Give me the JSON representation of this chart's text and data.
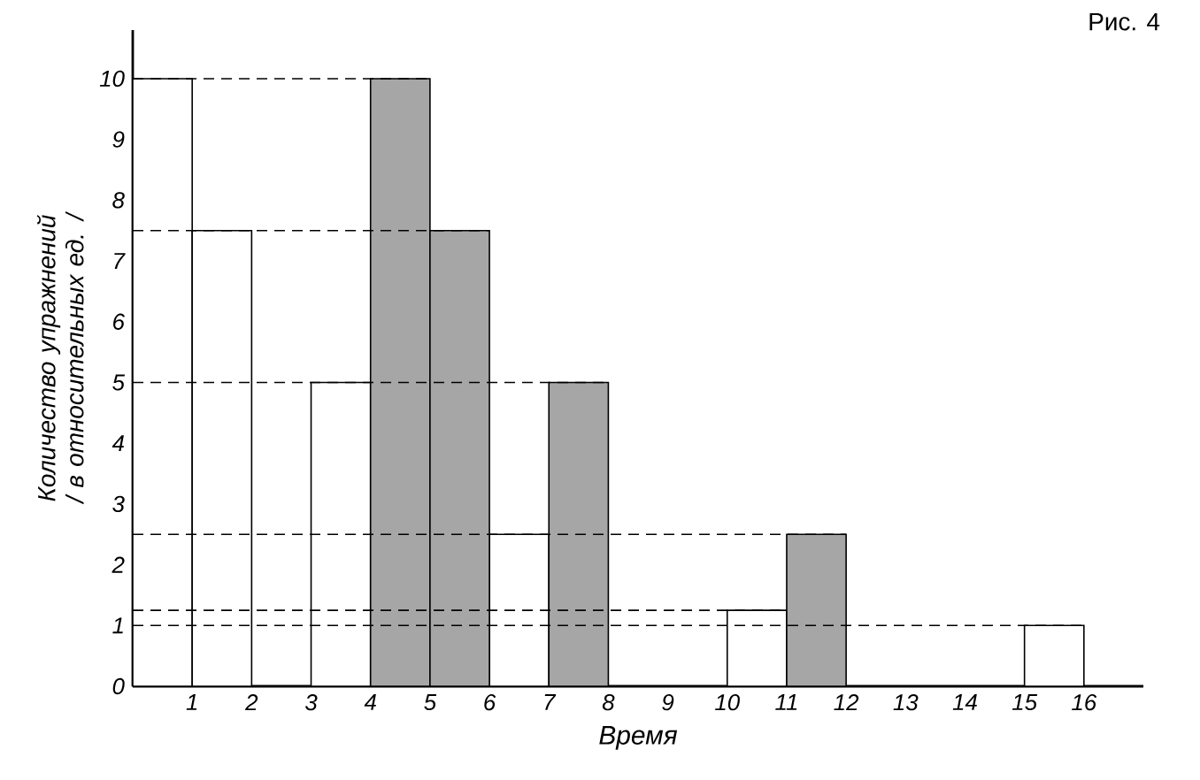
{
  "chart_data": {
    "type": "bar",
    "xlabel": "Время",
    "ylabel": "Количество упражнений / в относительных ед. /",
    "annotations": [
      "Рис. 4"
    ],
    "series": [
      {
        "color": "#ffffff",
        "x": [
          0.5,
          1.5,
          3.5,
          6.5,
          10.5,
          15.5
        ],
        "values": [
          10,
          7.5,
          5,
          2.5,
          1.25,
          1
        ]
      },
      {
        "color": "#a6a6a6",
        "x": [
          4.5,
          5.5,
          7.5,
          11.5
        ],
        "values": [
          10,
          7.5,
          5,
          2.5
        ]
      }
    ],
    "xlim": [
      0,
      17
    ],
    "xticks": [
      1,
      2,
      3,
      4,
      5,
      6,
      7,
      8,
      9,
      10,
      11,
      12,
      13,
      14,
      15,
      16
    ],
    "ylim": [
      0,
      10.8
    ],
    "yticks": [
      0,
      1,
      2,
      3,
      4,
      5,
      6,
      7,
      8,
      9,
      10
    ],
    "ref_lines": [
      {
        "axis": "y",
        "value": 10,
        "line_style": "dashed"
      },
      {
        "axis": "y",
        "value": 7.5,
        "line_style": "dashed"
      },
      {
        "axis": "y",
        "value": 5,
        "line_style": "dashed"
      },
      {
        "axis": "y",
        "value": 2.5,
        "line_style": "dashed"
      },
      {
        "axis": "y",
        "value": 1.25,
        "line_style": "dashed"
      },
      {
        "axis": "y",
        "value": 1,
        "line_style": "dashed"
      }
    ]
  }
}
